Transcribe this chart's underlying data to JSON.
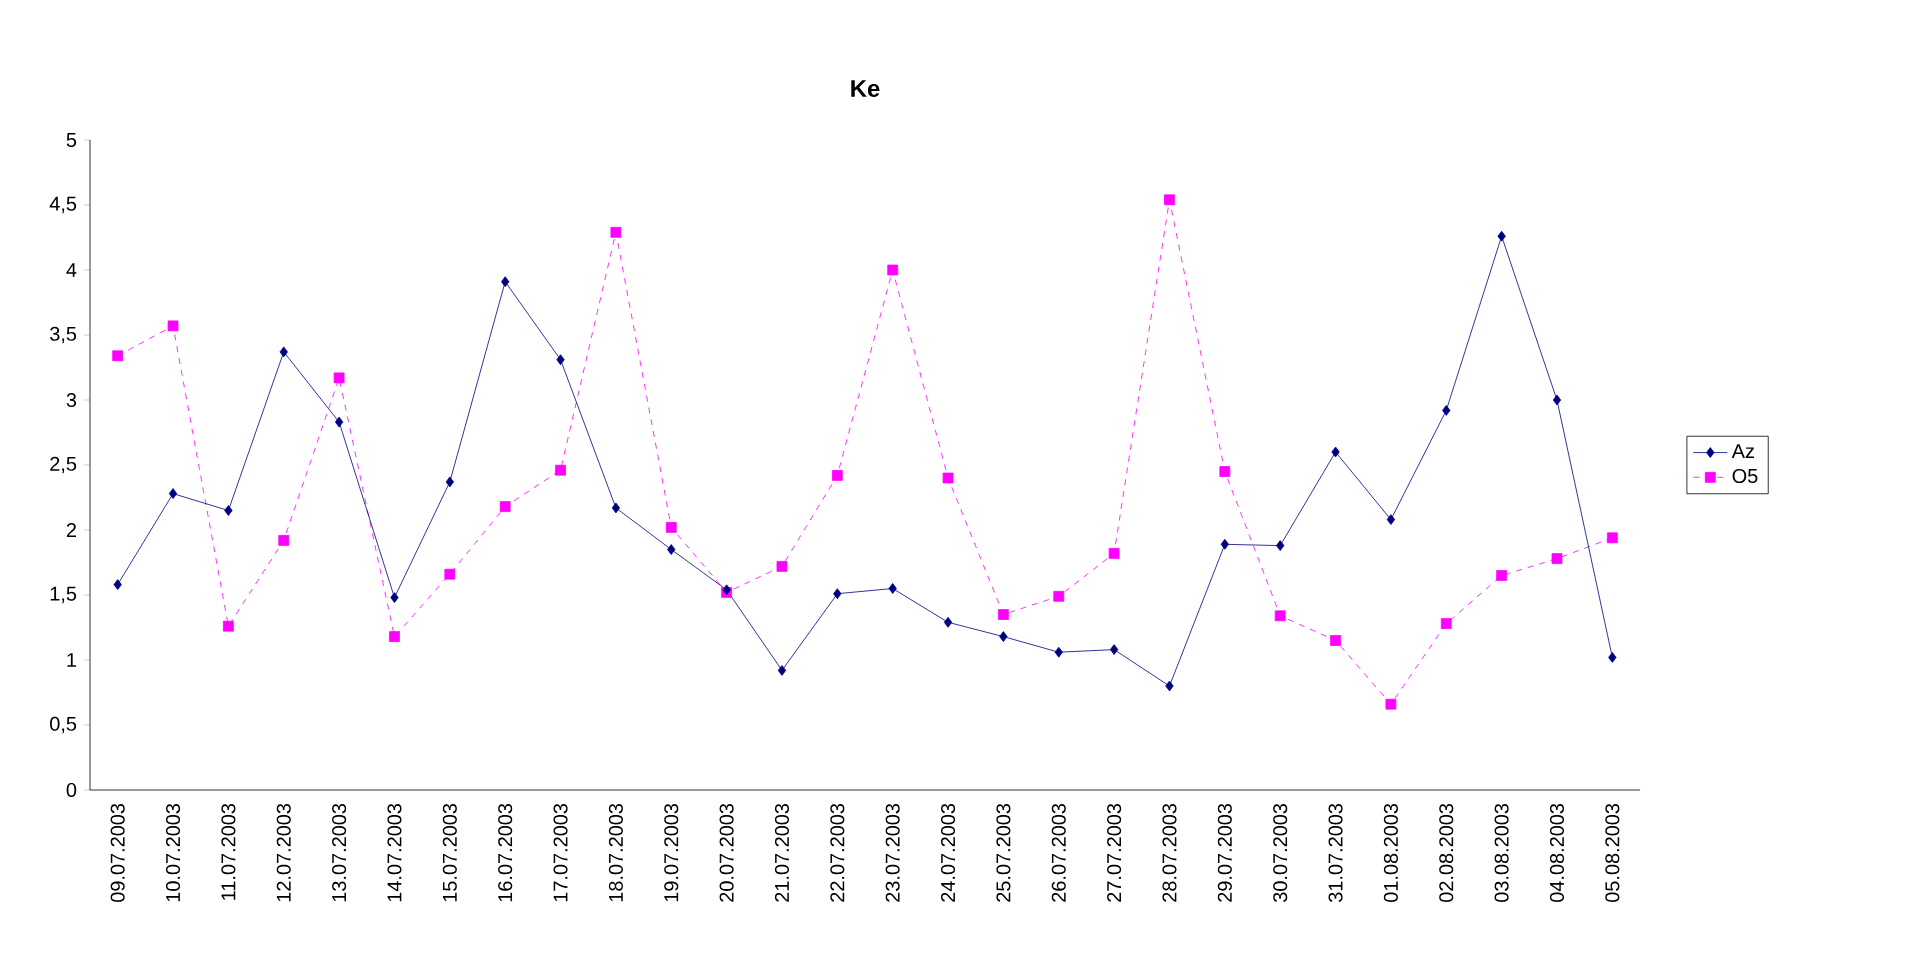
{
  "chart_data": {
    "type": "line",
    "title": "Ke",
    "categories": [
      "09.07.2003",
      "10.07.2003",
      "11.07.2003",
      "12.07.2003",
      "13.07.2003",
      "14.07.2003",
      "15.07.2003",
      "16.07.2003",
      "17.07.2003",
      "18.07.2003",
      "19.07.2003",
      "20.07.2003",
      "21.07.2003",
      "22.07.2003",
      "23.07.2003",
      "24.07.2003",
      "25.07.2003",
      "26.07.2003",
      "27.07.2003",
      "28.07.2003",
      "29.07.2003",
      "30.07.2003",
      "31.07.2003",
      "01.08.2003",
      "02.08.2003",
      "03.08.2003",
      "04.08.2003",
      "05.08.2003"
    ],
    "series": [
      {
        "name": "Az",
        "color": "#000080",
        "marker": "diamond",
        "line_style": "solid",
        "values": [
          1.58,
          2.28,
          2.15,
          3.37,
          2.83,
          1.48,
          2.37,
          3.91,
          3.31,
          2.17,
          1.85,
          1.54,
          0.92,
          1.51,
          1.55,
          1.29,
          1.18,
          1.06,
          1.08,
          0.8,
          1.89,
          1.88,
          2.6,
          2.08,
          2.92,
          4.26,
          3.0,
          1.02
        ]
      },
      {
        "name": "O5",
        "color": "#ff00ff",
        "marker": "square",
        "line_style": "dashed",
        "values": [
          3.34,
          3.57,
          1.26,
          1.92,
          3.17,
          1.18,
          1.66,
          2.18,
          2.46,
          4.29,
          2.02,
          1.52,
          1.72,
          2.42,
          4.0,
          2.4,
          1.35,
          1.49,
          1.82,
          4.54,
          2.45,
          1.34,
          1.15,
          0.66,
          1.28,
          1.65,
          1.78,
          1.94
        ]
      }
    ],
    "ylim": [
      0,
      5
    ],
    "yticks": [
      0,
      {
        "value": 0.5,
        "label": "0,5"
      },
      1,
      {
        "value": 1.5,
        "label": "1,5"
      },
      2,
      {
        "value": 2.5,
        "label": "2,5"
      },
      3,
      {
        "value": 3.5,
        "label": "3,5"
      },
      4,
      {
        "value": 4.5,
        "label": "4,5"
      },
      5
    ],
    "grid": false,
    "legend": "right"
  }
}
